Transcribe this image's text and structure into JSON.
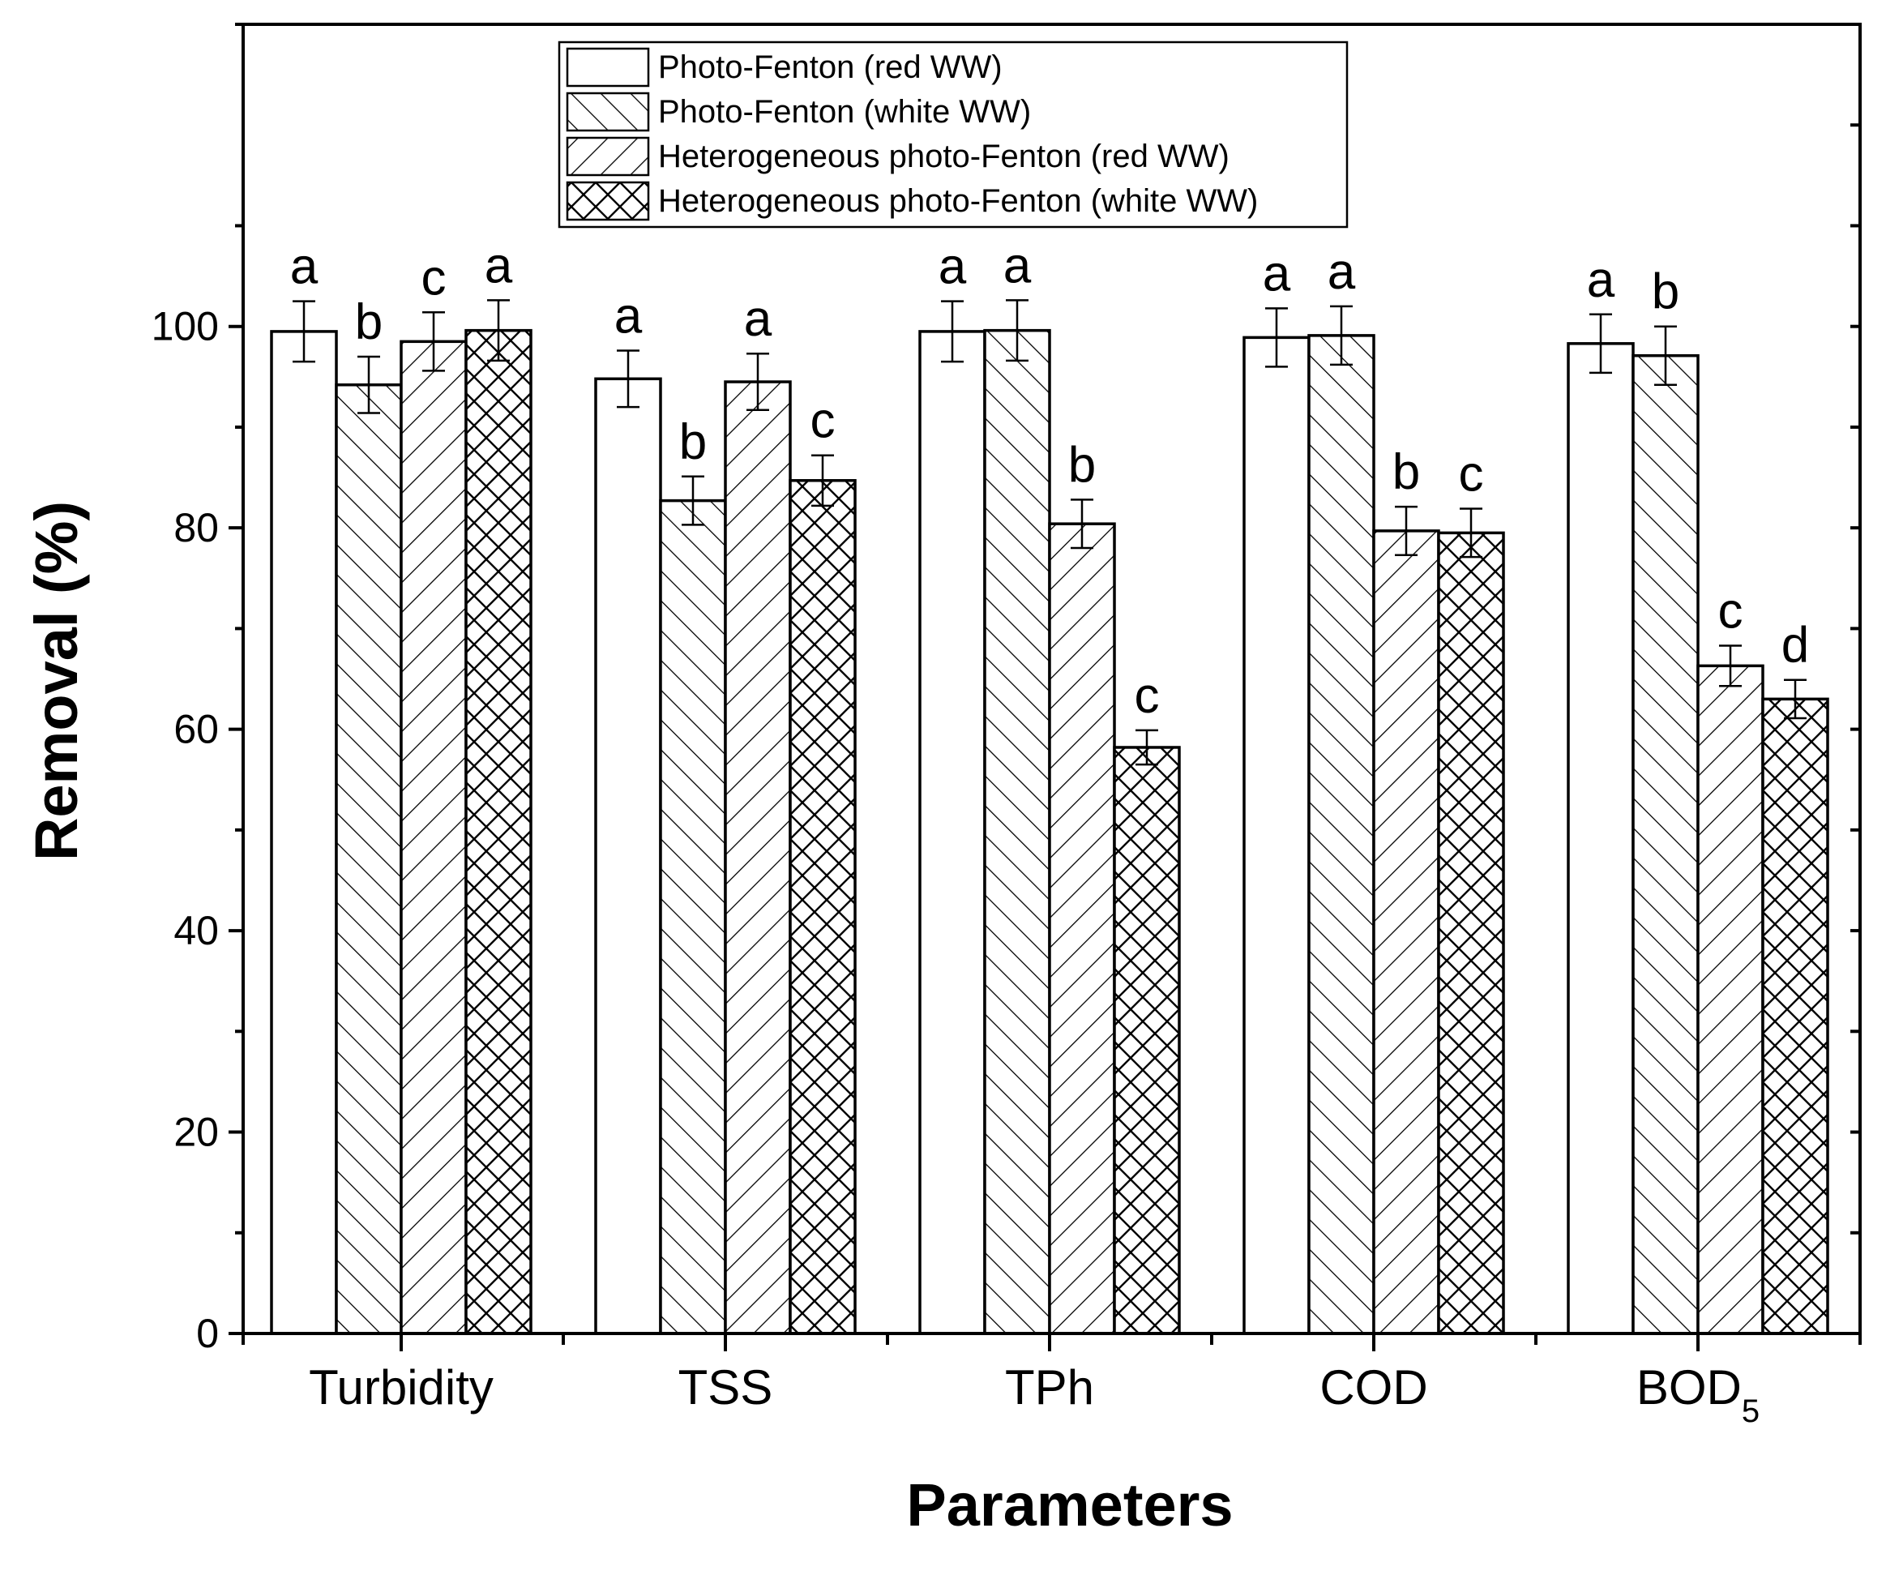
{
  "chart_data": {
    "type": "bar",
    "title": "",
    "xlabel": "Parameters",
    "ylabel": "Removal (%)",
    "ylim": [
      0,
      130
    ],
    "yticks": [
      0,
      20,
      40,
      60,
      80,
      100
    ],
    "categories": [
      "Turbidity",
      "TSS",
      "TPh",
      "COD",
      "BOD"
    ],
    "category_subscripts": [
      "",
      "",
      "",
      "",
      "5"
    ],
    "legend_position": "top-center",
    "series": [
      {
        "name": "Photo-Fenton (red WW)",
        "pattern": "none",
        "values": [
          99.5,
          94.8,
          99.5,
          98.9,
          98.3
        ],
        "errors": [
          3.0,
          2.8,
          3.0,
          2.9,
          2.9
        ],
        "sig_letters": [
          "a",
          "a",
          "a",
          "a",
          "a"
        ]
      },
      {
        "name": "Photo-Fenton (white WW)",
        "pattern": "forward-hatch",
        "values": [
          94.2,
          82.7,
          99.6,
          99.1,
          97.1
        ],
        "errors": [
          2.8,
          2.4,
          3.0,
          2.9,
          2.9
        ],
        "sig_letters": [
          "b",
          "b",
          "a",
          "a",
          "b"
        ]
      },
      {
        "name": "Heterogeneous photo-Fenton (red WW)",
        "pattern": "back-hatch",
        "values": [
          98.5,
          94.5,
          80.4,
          79.7,
          66.3
        ],
        "errors": [
          2.9,
          2.8,
          2.4,
          2.4,
          2.0
        ],
        "sig_letters": [
          "c",
          "a",
          "b",
          "b",
          "c"
        ]
      },
      {
        "name": "Heterogeneous photo-Fenton (white WW)",
        "pattern": "cross-hatch",
        "values": [
          99.6,
          84.7,
          58.2,
          79.5,
          63.0
        ],
        "errors": [
          3.0,
          2.5,
          1.7,
          2.4,
          1.9
        ],
        "sig_letters": [
          "a",
          "c",
          "c",
          "c",
          "d"
        ]
      }
    ]
  }
}
